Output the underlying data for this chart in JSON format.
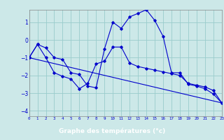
{
  "xlabel": "Graphe des températures (°c)",
  "background_color": "#cce8e8",
  "line_color": "#0000cc",
  "grid_color": "#99cccc",
  "xlabel_bg": "#3355aa",
  "xlabel_fg": "#ffffff",
  "series1_x": [
    0,
    1,
    2,
    3,
    4,
    5,
    6,
    7,
    8,
    9,
    10,
    11,
    12,
    13,
    14,
    15,
    16,
    17,
    18,
    19,
    20,
    21,
    22,
    23
  ],
  "series1_y": [
    -1.0,
    -0.25,
    -0.45,
    -1.0,
    -1.1,
    -1.85,
    -1.95,
    -2.6,
    -2.7,
    -0.5,
    1.0,
    0.65,
    1.3,
    1.5,
    1.7,
    1.1,
    0.2,
    -1.85,
    -1.85,
    -2.5,
    -2.6,
    -2.75,
    -3.05,
    -3.55
  ],
  "series2_x": [
    0,
    1,
    2,
    3,
    4,
    5,
    6,
    7,
    8,
    9,
    10,
    11,
    12,
    13,
    14,
    15,
    16,
    17,
    18,
    19,
    20,
    21,
    22,
    23
  ],
  "series2_y": [
    -1.0,
    -0.25,
    -1.0,
    -1.85,
    -2.05,
    -2.2,
    -2.75,
    -2.45,
    -1.35,
    -1.2,
    -0.4,
    -0.4,
    -1.3,
    -1.5,
    -1.6,
    -1.7,
    -1.8,
    -1.9,
    -2.0,
    -2.45,
    -2.55,
    -2.65,
    -2.85,
    -3.55
  ],
  "series3_x": [
    0,
    23
  ],
  "series3_y": [
    -1.0,
    -3.55
  ],
  "ylim": [
    -4.3,
    1.7
  ],
  "xlim": [
    0,
    23
  ],
  "yticks": [
    -4,
    -3,
    -2,
    -1,
    0,
    1
  ],
  "xticks": [
    0,
    1,
    2,
    3,
    4,
    5,
    6,
    7,
    8,
    9,
    10,
    11,
    12,
    13,
    14,
    15,
    16,
    17,
    18,
    19,
    20,
    21,
    22,
    23
  ]
}
